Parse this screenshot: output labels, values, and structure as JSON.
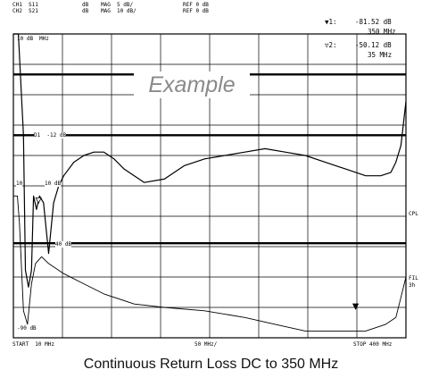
{
  "header": {
    "ch1": "CH1  S11",
    "ch2": "CH2  S21",
    "ch1_unit": "dB",
    "ch2_unit": "dB",
    "ch1_mag": "MAG  5 dB/",
    "ch2_mag": "MAG  10 dB/",
    "ch1_ref": "REF 0 dB",
    "ch2_ref": "REF 0 dB"
  },
  "markers": {
    "m1_label": "1:",
    "m1_value": "-81.52 dB",
    "m1_freq": "350 MHz",
    "m2_label": "2:",
    "m2_value": "-50.12 dB",
    "m2_freq": "35 MHz"
  },
  "watermark": "Example",
  "caption": "Continuous Return Loss DC to 350 MHz",
  "chart_data": {
    "type": "line",
    "x_start_label": "START  10 MHz",
    "x_center_label": "50 MHz/",
    "x_stop_label": "STOP 400 MHz",
    "x_range": [
      10,
      400
    ],
    "annotations": {
      "top_left": "10 dB",
      "mhz_tag": "MHz",
      "d1": "D1  -12 dB",
      "ten": "10",
      "ten_db": "10 dB",
      "forty": "40 dB",
      "bottom_ref": "-90 dB",
      "side_cpl": "CPL",
      "side_fil": "FIL",
      "side_3h": "3h"
    },
    "series": [
      {
        "color": "#000000",
        "x": [
          10,
          15,
          20,
          22,
          25,
          28,
          30,
          33,
          36,
          40,
          45,
          50,
          55,
          60,
          70,
          80,
          90,
          100,
          110,
          120,
          140,
          160,
          180,
          200,
          220,
          240,
          260,
          280,
          300,
          320,
          340,
          360,
          375,
          385,
          390,
          395,
          400
        ],
        "y": [
          0,
          0,
          -30,
          -70,
          -75,
          -70,
          -48,
          -52,
          -48,
          -50,
          -65,
          -50,
          -45,
          -42,
          -38,
          -36,
          -35,
          -35,
          -37,
          -40,
          -44,
          -43,
          -39,
          -37,
          -36,
          -35,
          -34,
          -35,
          -36,
          -38,
          -40,
          -42,
          -42,
          -41,
          -38,
          -33,
          -20
        ]
      },
      {
        "color": "#000000",
        "x": [
          10,
          14,
          16,
          20,
          24,
          28,
          32,
          38,
          45,
          60,
          80,
          100,
          130,
          160,
          200,
          240,
          270,
          300,
          330,
          360,
          380,
          390,
          395,
          400
        ],
        "y": [
          -48,
          -48,
          -56,
          -82,
          -86,
          -74,
          -68,
          -66,
          -68,
          -71,
          -74,
          -77,
          -80,
          -81,
          -82,
          -84,
          -86,
          -88,
          -88,
          -88,
          -86,
          -84,
          -78,
          -72
        ]
      }
    ],
    "ylim": [
      -90,
      0
    ],
    "grid": true
  }
}
